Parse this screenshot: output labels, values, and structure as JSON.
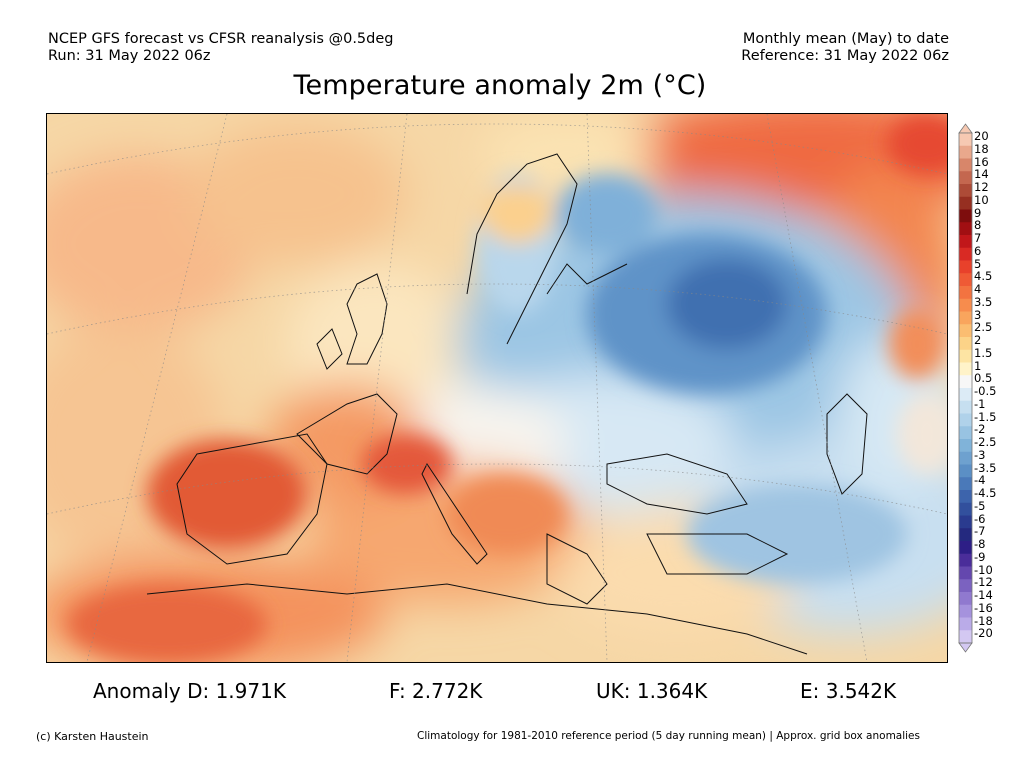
{
  "header": {
    "left_line1": "NCEP GFS forecast vs CFSR reanalysis @0.5deg",
    "left_line2": "Run: 31 May 2022 06z",
    "right_line1": "Monthly mean (May) to date",
    "right_line2": "Reference: 31 May 2022 06z"
  },
  "title": "Temperature anomaly 2m (°C)",
  "colorbar": {
    "labels": [
      "20",
      "18",
      "16",
      "14",
      "12",
      "10",
      "9",
      "8",
      "7",
      "6",
      "5",
      "4.5",
      "4",
      "3.5",
      "3",
      "2.5",
      "2",
      "1.5",
      "1",
      "0.5",
      "-0.5",
      "-1",
      "-1.5",
      "-2",
      "-2.5",
      "-3",
      "-3.5",
      "-4",
      "-4.5",
      "-5",
      "-6",
      "-7",
      "-8",
      "-9",
      "-10",
      "-12",
      "-14",
      "-16",
      "-18",
      "-20"
    ],
    "colors": [
      "#f6c9b2",
      "#e9a88c",
      "#d8866a",
      "#c4674f",
      "#ad4b37",
      "#962f21",
      "#7e0d0d",
      "#a10f12",
      "#c1171a",
      "#d92a24",
      "#e8412b",
      "#ef5a35",
      "#f37340",
      "#f78c4d",
      "#f9a55d",
      "#fbbd71",
      "#fcd388",
      "#fde4a3",
      "#fff3c9",
      "#f7f7f7",
      "#dcebf6",
      "#c6dff0",
      "#b0d2ea",
      "#98c3e2",
      "#80b3d9",
      "#6ea1cf",
      "#5b8fc5",
      "#4a79b9",
      "#3d64ac",
      "#32509d",
      "#2a3b8f",
      "#24297f",
      "#2d1e86",
      "#4a2d9a",
      "#6447ae",
      "#7b62c0",
      "#9079cf",
      "#a592dd",
      "#baabe8",
      "#d3c8f2"
    ]
  },
  "stats": {
    "anomaly_d": "Anomaly D: 1.971K",
    "f": "F: 2.772K",
    "uk": "UK: 1.364K",
    "e": "E: 3.542K"
  },
  "footer": {
    "credit": "(c) Karsten Haustein",
    "note": "Climatology for 1981-2010 reference period (5 day running mean) | Approx. grid box anomalies"
  }
}
